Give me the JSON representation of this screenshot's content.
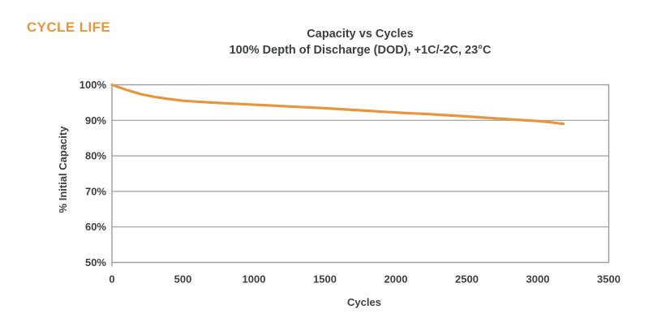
{
  "page": {
    "heading": "CYCLE LIFE"
  },
  "colors": {
    "accent_orange": "#E8963C",
    "text_dark": "#3C4043",
    "grid_gray": "#9C9C9C"
  },
  "chart_data": {
    "type": "line",
    "title": "Capacity vs Cycles",
    "subtitle": "100% Depth of Discharge (DOD), +1C/-2C, 23°C",
    "xlabel": "Cycles",
    "ylabel": "% Initial Capacity",
    "xlim": [
      0,
      3500
    ],
    "ylim": [
      50,
      100
    ],
    "x_ticks": [
      0,
      500,
      1000,
      1500,
      2000,
      2500,
      3000,
      3500
    ],
    "y_ticks": [
      100,
      90,
      80,
      70,
      60,
      50
    ],
    "y_tick_suffix": "%",
    "grid": "horizontal",
    "legend_position": "none",
    "series": [
      {
        "name": "% Initial Capacity",
        "color": "#E8963C",
        "x": [
          0,
          50,
          100,
          150,
          200,
          300,
          400,
          500,
          700,
          900,
          1100,
          1300,
          1500,
          1750,
          2000,
          2250,
          2500,
          2750,
          3000,
          3100,
          3180
        ],
        "y": [
          100,
          99.3,
          98.6,
          98.0,
          97.4,
          96.6,
          96.0,
          95.5,
          95.0,
          94.6,
          94.2,
          93.8,
          93.4,
          92.8,
          92.2,
          91.7,
          91.1,
          90.4,
          89.8,
          89.4,
          89.0
        ]
      }
    ]
  }
}
